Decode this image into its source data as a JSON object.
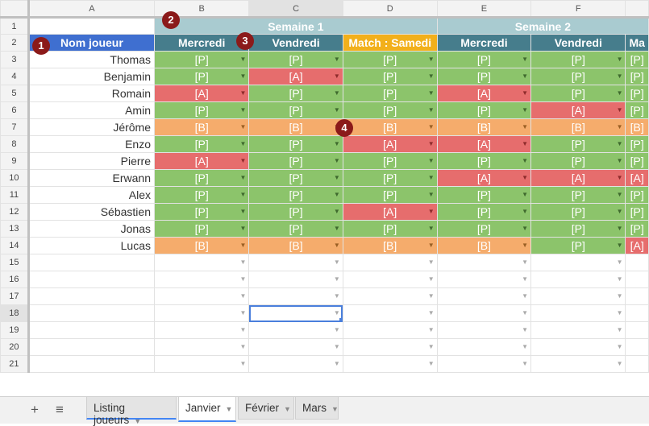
{
  "columns": [
    "A",
    "B",
    "C",
    "D",
    "E",
    "F",
    ""
  ],
  "rows": [
    "1",
    "2",
    "3",
    "4",
    "5",
    "6",
    "7",
    "8",
    "9",
    "10",
    "11",
    "12",
    "13",
    "14",
    "15",
    "16",
    "17",
    "18",
    "19",
    "20",
    "21"
  ],
  "weeks": [
    "Semaine 1",
    "Semaine 2"
  ],
  "header_name": "Nom joueur",
  "days": [
    "Mercredi",
    "Vendredi",
    "Match : Samedi",
    "Mercredi",
    "Vendredi",
    "Ma"
  ],
  "players": [
    {
      "name": "Thomas",
      "att": [
        "P",
        "P",
        "P",
        "P",
        "P",
        "P"
      ]
    },
    {
      "name": "Benjamin",
      "att": [
        "P",
        "A",
        "P",
        "P",
        "P",
        "P"
      ]
    },
    {
      "name": "Romain",
      "att": [
        "A",
        "P",
        "P",
        "A",
        "P",
        "P"
      ]
    },
    {
      "name": "Amin",
      "att": [
        "P",
        "P",
        "P",
        "P",
        "A",
        "P"
      ]
    },
    {
      "name": "Jérôme",
      "att": [
        "B",
        "B",
        "B",
        "B",
        "B",
        "B"
      ]
    },
    {
      "name": "Enzo",
      "att": [
        "P",
        "P",
        "A",
        "A",
        "P",
        "P"
      ]
    },
    {
      "name": "Pierre",
      "att": [
        "A",
        "P",
        "P",
        "P",
        "P",
        "P"
      ]
    },
    {
      "name": "Erwann",
      "att": [
        "P",
        "P",
        "P",
        "A",
        "A",
        "A"
      ]
    },
    {
      "name": "Alex",
      "att": [
        "P",
        "P",
        "P",
        "P",
        "P",
        "P"
      ]
    },
    {
      "name": "Sébastien",
      "att": [
        "P",
        "P",
        "A",
        "P",
        "P",
        "P"
      ]
    },
    {
      "name": "Jonas",
      "att": [
        "P",
        "P",
        "P",
        "P",
        "P",
        "P"
      ]
    },
    {
      "name": "Lucas",
      "att": [
        "B",
        "B",
        "B",
        "B",
        "P",
        "A"
      ]
    }
  ],
  "att_labels": {
    "P": "[P]",
    "A": "[A]",
    "B": "[B]"
  },
  "badges": [
    "1",
    "2",
    "3",
    "4"
  ],
  "sheet_tabs": [
    "Listing joueurs",
    "Janvier",
    "Février",
    "Mars"
  ],
  "icons": {
    "add": "plus-icon",
    "list": "hamburger-icon",
    "dropdown": "triangle-down-icon"
  },
  "colors": {
    "present": "#8cc46b",
    "absent": "#e66d6d",
    "blessed": "#f5ac6c",
    "day_header": "#467d8c",
    "match_header": "#f2b01b",
    "week_header": "#a9cbd0",
    "name_header": "#3f6fd0"
  }
}
